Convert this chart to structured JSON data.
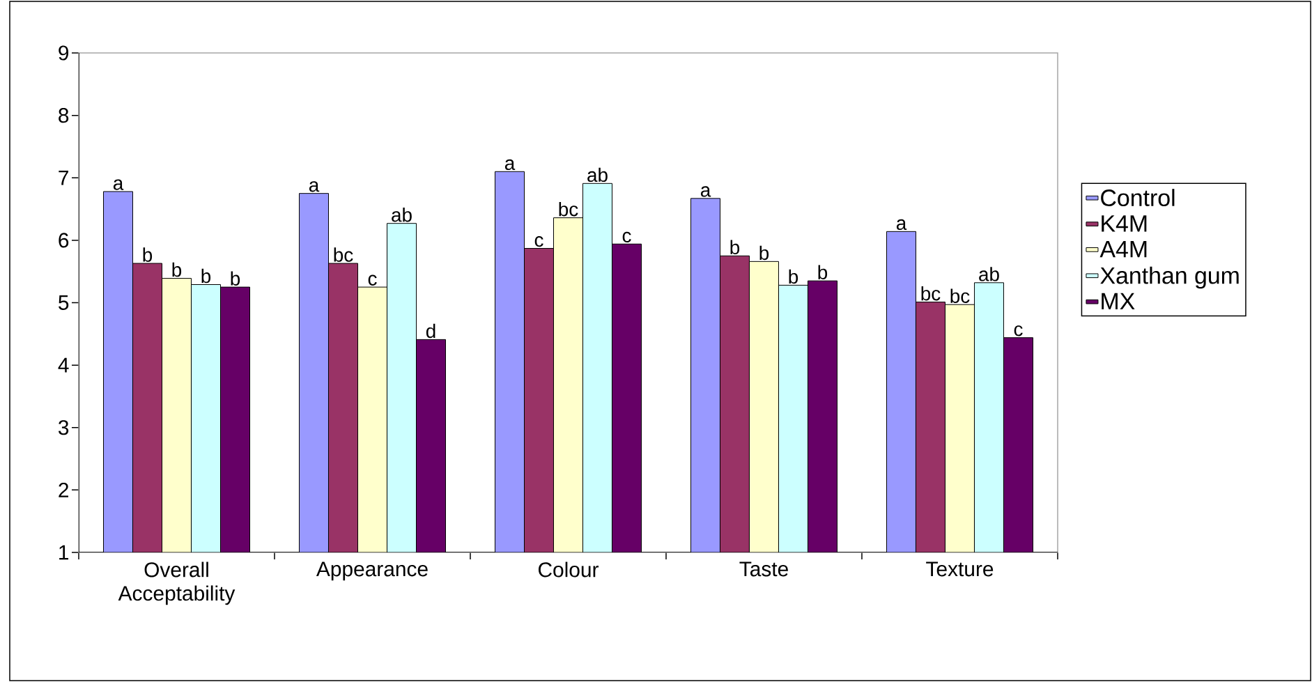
{
  "chart_data": {
    "type": "bar",
    "categories": [
      "Overall Acceptability",
      "Appearance",
      "Colour",
      "Taste",
      "Texture"
    ],
    "series": [
      {
        "name": "Control",
        "color": "#9999ff",
        "values": [
          6.78,
          6.75,
          7.1,
          6.67,
          6.14
        ],
        "value_labels": [
          "a",
          "a",
          "a",
          "a",
          "a"
        ]
      },
      {
        "name": "K4M",
        "color": "#993366",
        "values": [
          5.63,
          5.63,
          5.87,
          5.75,
          5.01
        ],
        "value_labels": [
          "b",
          "bc",
          "c",
          "b",
          "bc"
        ]
      },
      {
        "name": "A4M",
        "color": "#ffffcc",
        "values": [
          5.39,
          5.25,
          6.36,
          5.66,
          4.97
        ],
        "value_labels": [
          "b",
          "c",
          "bc",
          "b",
          "bc"
        ]
      },
      {
        "name": "Xanthan gum",
        "color": "#ccffff",
        "values": [
          5.29,
          6.27,
          6.91,
          5.28,
          5.32
        ],
        "value_labels": [
          "b",
          "ab",
          "ab",
          "b",
          "ab"
        ]
      },
      {
        "name": "MX",
        "color": "#660066",
        "values": [
          5.25,
          4.41,
          5.94,
          5.35,
          4.44
        ],
        "value_labels": [
          "b",
          "d",
          "c",
          "b",
          "c"
        ]
      }
    ],
    "ylim": [
      1,
      9
    ],
    "yticks": [
      1,
      2,
      3,
      4,
      5,
      6,
      7,
      8,
      9
    ],
    "grid": false,
    "legend": "right"
  }
}
